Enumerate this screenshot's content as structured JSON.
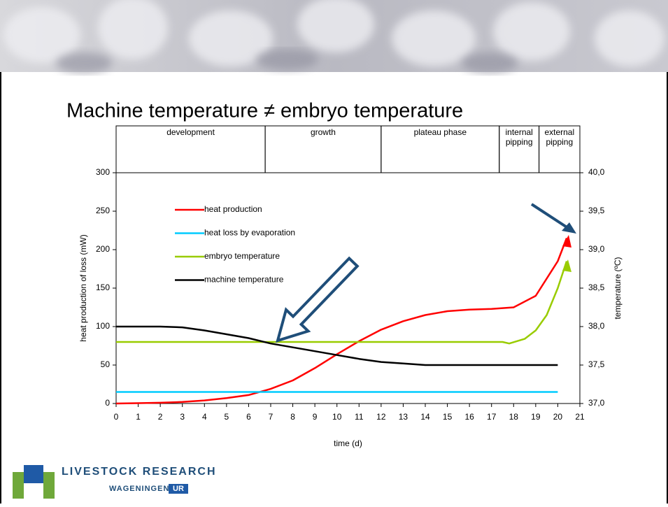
{
  "slide_title": "Machine temperature ≠ embryo temperature",
  "logo": {
    "line1": "LIVESTOCK RESEARCH",
    "line2": "WAGENINGEN",
    "badge": "UR"
  },
  "chart_data": {
    "type": "line",
    "xlabel": "time (d)",
    "ylabel": "heat production of loss (mW)",
    "y2label": "temperature (ºC)",
    "xlim": [
      0,
      21
    ],
    "xticks": [
      0,
      1,
      2,
      3,
      4,
      5,
      6,
      7,
      8,
      9,
      10,
      11,
      12,
      13,
      14,
      15,
      16,
      17,
      18,
      19,
      20,
      21
    ],
    "ylim": [
      0,
      300
    ],
    "yticks": [
      0,
      50,
      100,
      150,
      200,
      250,
      300
    ],
    "y2lim": [
      37,
      40
    ],
    "y2ticks": [
      {
        "value": 37,
        "label": "37,0"
      },
      {
        "value": 37.5,
        "label": "37,5"
      },
      {
        "value": 38,
        "label": "38,0"
      },
      {
        "value": 38.5,
        "label": "38,5"
      },
      {
        "value": 39,
        "label": "39,0"
      },
      {
        "value": 39.5,
        "label": "39,5"
      },
      {
        "value": 40,
        "label": "40,0"
      }
    ],
    "phases": [
      {
        "label": "development",
        "start": 0,
        "end": 6.75
      },
      {
        "label": "growth",
        "start": 6.75,
        "end": 12
      },
      {
        "label": "plateau phase",
        "start": 12,
        "end": 17.35
      },
      {
        "label": "internal pipping",
        "start": 17.35,
        "end": 19.15
      },
      {
        "label": "external pipping",
        "start": 19.15,
        "end": 21
      }
    ],
    "series": [
      {
        "name": "heat production",
        "color": "#ff0000",
        "x": [
          0,
          1,
          2,
          3,
          4,
          5,
          6,
          7,
          8,
          9,
          10,
          11,
          12,
          13,
          14,
          15,
          16,
          17,
          18,
          19,
          20,
          20.4
        ],
        "values": [
          0,
          0.5,
          1,
          2,
          4,
          7,
          11,
          19,
          30,
          46,
          64,
          81,
          96,
          107,
          115,
          120,
          122,
          123,
          125,
          140,
          185,
          215
        ]
      },
      {
        "name": "heat loss by evaporation",
        "color": "#00ccff",
        "x": [
          0,
          20
        ],
        "values": [
          15,
          15
        ]
      },
      {
        "name": "embryo temperature",
        "color": "#99cc00",
        "axis": "y2",
        "x": [
          0,
          17,
          17.5,
          17.8,
          18.5,
          19,
          19.5,
          20,
          20.4
        ],
        "values": [
          37.8,
          37.8,
          37.8,
          37.78,
          37.84,
          37.95,
          38.15,
          38.5,
          38.85
        ]
      },
      {
        "name": "machine temperature",
        "color": "#000000",
        "axis": "y2",
        "x": [
          0,
          1,
          2,
          3,
          4,
          5,
          6,
          7,
          8,
          9,
          10,
          11,
          12,
          13,
          14,
          15,
          16,
          17,
          18,
          19,
          20
        ],
        "values": [
          38,
          38,
          38,
          37.99,
          37.95,
          37.9,
          37.85,
          37.78,
          37.73,
          37.68,
          37.63,
          37.58,
          37.54,
          37.52,
          37.5,
          37.5,
          37.5,
          37.5,
          37.5,
          37.5,
          37.5
        ]
      }
    ]
  }
}
